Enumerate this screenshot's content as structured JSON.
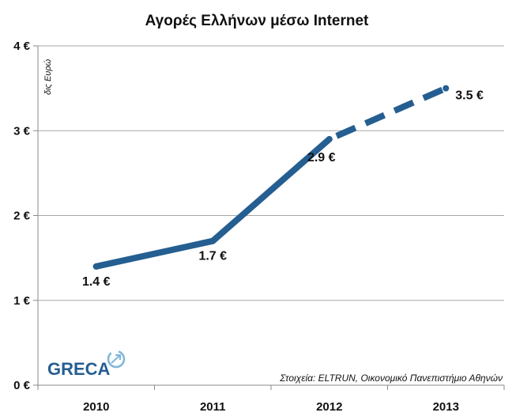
{
  "chart_data": {
    "type": "line",
    "title": "Αγορές Ελλήνων μέσω Internet",
    "unit_label": "δις Ευρώ",
    "categories": [
      "2010",
      "2011",
      "2012",
      "2013"
    ],
    "values": [
      1.4,
      1.7,
      2.9,
      3.5
    ],
    "data_labels": [
      "1.4 €",
      "1.7 €",
      "2.9 €",
      "3.5 €"
    ],
    "projected_from_index": 2,
    "ylim": [
      0,
      4
    ],
    "yticks": [
      {
        "value": 0,
        "label": "0 €"
      },
      {
        "value": 1,
        "label": "1 €"
      },
      {
        "value": 2,
        "label": "2 €"
      },
      {
        "value": 3,
        "label": "3 €"
      },
      {
        "value": 4,
        "label": "4 €"
      }
    ],
    "grid": true,
    "line_color": "#255E91",
    "source": "Στοιχεία: ELTRUN, Οικονομικό Πανεπιστήμιο Αθηνών"
  },
  "logo": {
    "text": "GRECA",
    "color": "#255E91",
    "accent_color": "#7EB6DA",
    "icon": "globe-arrow-icon"
  }
}
